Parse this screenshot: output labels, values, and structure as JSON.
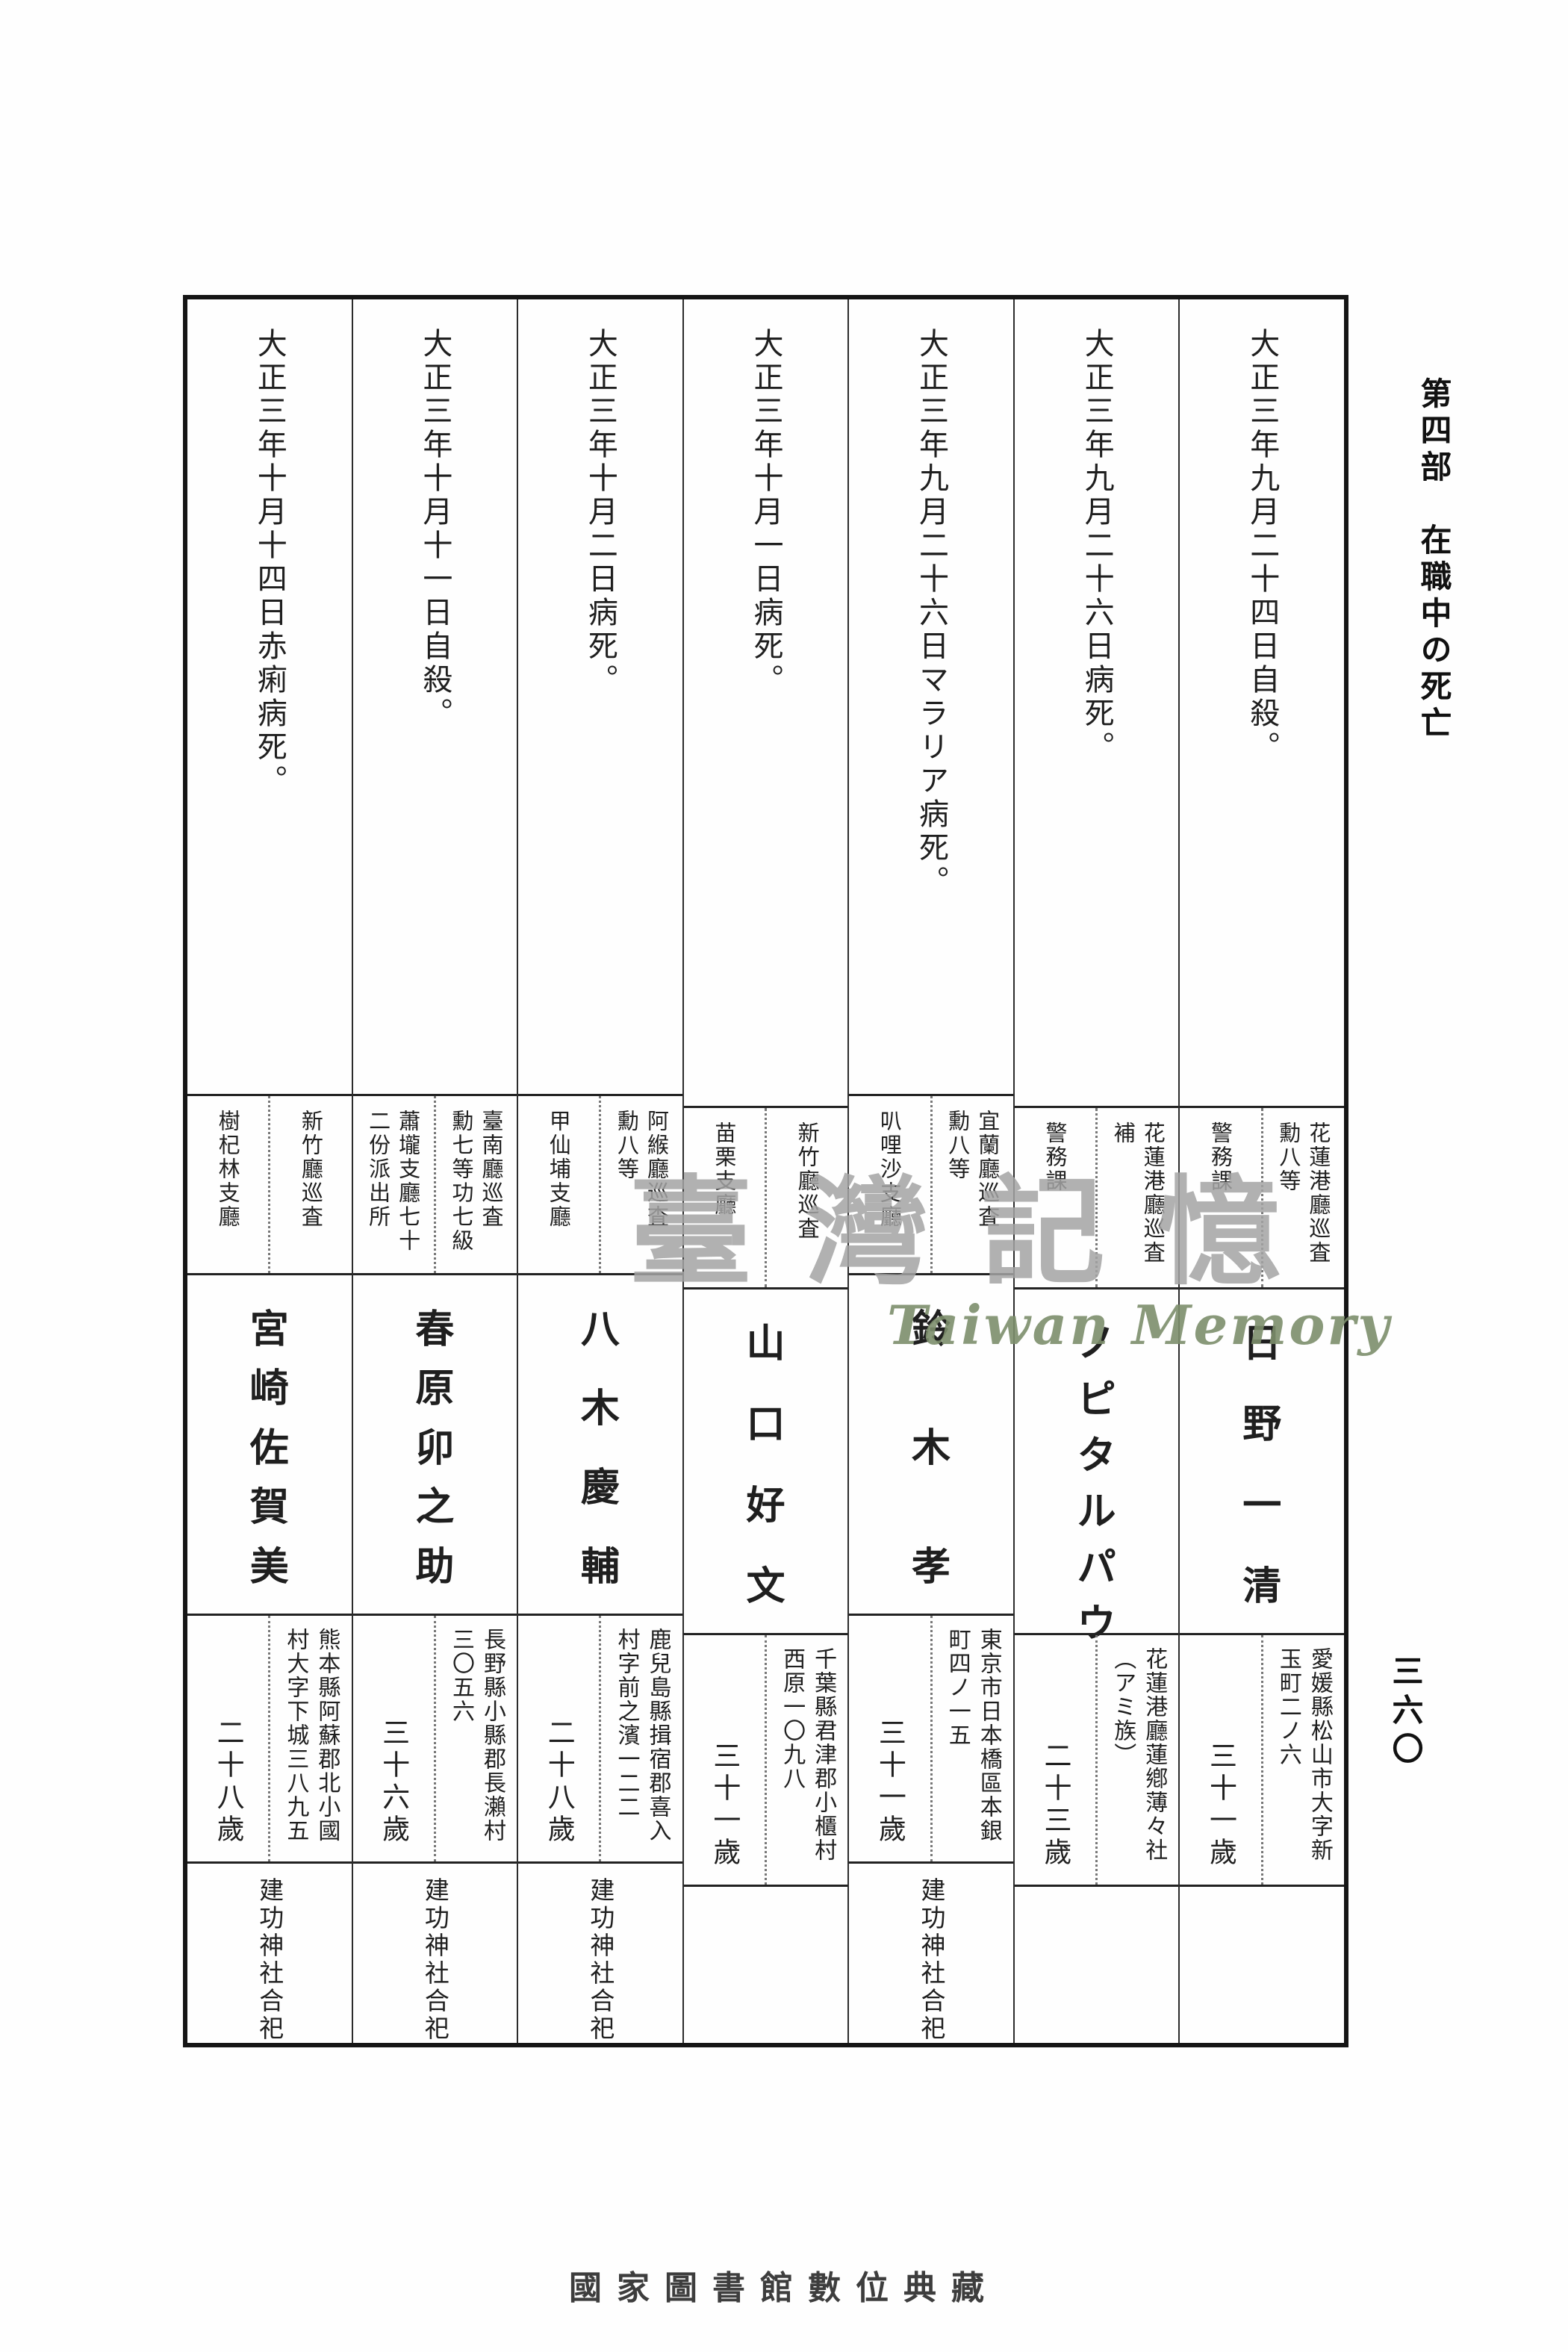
{
  "page": {
    "side_header": "第四部　在職中の死亡",
    "page_number": "三六〇",
    "footer": "國家圖書館數位典藏",
    "watermark_cjk": "臺灣記憶",
    "watermark_en": "Taiwan Memory",
    "ink_color": "#1f1f1f",
    "watermark_gray": "#a3a3a3",
    "watermark_green": "#7c8e6c"
  },
  "table": {
    "reading_order": "columns listed right to left",
    "columns": [
      {
        "date": "大正三年九月二十四日自殺。",
        "rank": "花蓮港廳巡査\n勳八等",
        "dept": "警務課",
        "name": "日野一清",
        "address": "愛媛縣松山市大字新\n玉町二ノ六",
        "age": "三十一歲",
        "note": ""
      },
      {
        "date": "大正三年九月二十六日病死。",
        "rank": "花蓮港廳巡査\n補",
        "dept": "警務課",
        "name": "ノピタルパウ",
        "address": "花蓮港廳蓮鄕薄々社\n（アミ族）",
        "age": "二十三歲",
        "note": ""
      },
      {
        "date": "大正三年九月二十六日マラリア病死。",
        "rank": "宜蘭廳巡査\n勳八等",
        "dept": "叭哩沙支廳",
        "name": "鈴木孝",
        "address": "東京市日本橋區本銀\n町四ノ一五",
        "age": "三十一歲",
        "note": "建功神社合祀"
      },
      {
        "date": "大正三年十月一日病死。",
        "rank": "新竹廳巡査",
        "dept": "苗栗支廳",
        "name": "山口好文",
        "address": "千葉縣君津郡小櫃村\n西原一〇九八",
        "age": "三十一歲",
        "note": ""
      },
      {
        "date": "大正三年十月二日病死。",
        "rank": "阿緱廳巡査\n勳八等",
        "dept": "甲仙埔支廳",
        "name": "八木慶輔",
        "address": "鹿兒島縣揖宿郡喜入\n村字前之濱一二二",
        "age": "二十八歲",
        "note": "建功神社合祀"
      },
      {
        "date": "大正三年十月十一日自殺。",
        "rank": "臺南廳巡査\n勳七等功七級",
        "dept": "蕭壠支廳七十\n二份派出所",
        "name": "春原卯之助",
        "address": "長野縣小縣郡長瀨村\n三〇五六",
        "age": "三十六歲",
        "note": "建功神社合祀"
      },
      {
        "date": "大正三年十月十四日赤痢病死。",
        "rank": "新竹廳巡査",
        "dept": "樹杞林支廳",
        "name": "宮崎佐賀美",
        "address": "熊本縣阿蘇郡北小國\n村大字下城三八九五",
        "age": "二十八歲",
        "note": "建功神社合祀"
      }
    ]
  }
}
